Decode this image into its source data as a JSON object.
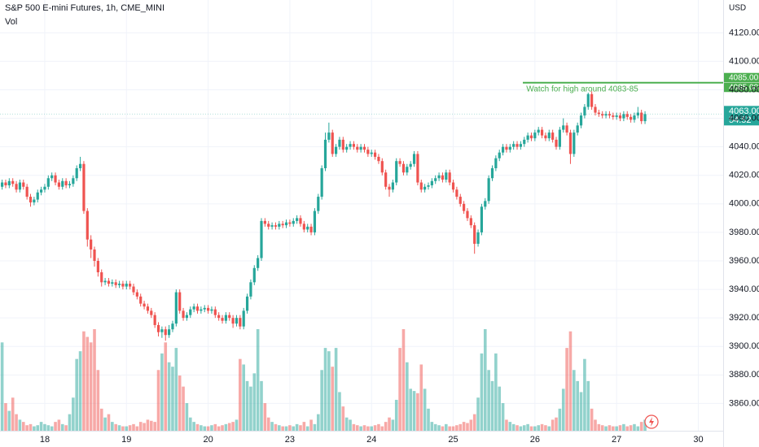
{
  "chart_data": {
    "type": "candlestick",
    "title": "S&P 500 E-mini Futures, 1h, CME_MINI",
    "volume_label": "Vol",
    "currency": "USD",
    "up_color": "#26a69a",
    "down_color": "#ef5350",
    "grid": true,
    "xlim": [
      -0.6,
      203
    ],
    "ylim": [
      3838,
      4143
    ],
    "xticks": [
      {
        "value": 12,
        "label": "18"
      },
      {
        "value": 35,
        "label": "19"
      },
      {
        "value": 58,
        "label": "20"
      },
      {
        "value": 81,
        "label": "23"
      },
      {
        "value": 104,
        "label": "24"
      },
      {
        "value": 127,
        "label": "25"
      },
      {
        "value": 150,
        "label": "26"
      },
      {
        "value": 173,
        "label": "27"
      },
      {
        "value": 196,
        "label": "30"
      }
    ],
    "yticks": [
      {
        "value": 3860,
        "label": "3860.00"
      },
      {
        "value": 3880,
        "label": "3880.00"
      },
      {
        "value": 3900,
        "label": "3900.00"
      },
      {
        "value": 3920,
        "label": "3920.00"
      },
      {
        "value": 3940,
        "label": "3940.00"
      },
      {
        "value": 3960,
        "label": "3960.00"
      },
      {
        "value": 3980,
        "label": "3980.00"
      },
      {
        "value": 4000,
        "label": "4000.00"
      },
      {
        "value": 4020,
        "label": "4020.00"
      },
      {
        "value": 4040,
        "label": "4040.00"
      },
      {
        "value": 4060,
        "label": "4060.00"
      },
      {
        "value": 4080,
        "label": "4080.00"
      },
      {
        "value": 4100,
        "label": "4100.00"
      },
      {
        "value": 4120,
        "label": "4120.00"
      }
    ],
    "annotation": {
      "text": "Watch for high around 4083-85",
      "price": 4085,
      "x_start": 146.6,
      "color": "#4caf50",
      "price_labels": [
        "4085.00",
        "4085.00"
      ]
    },
    "last_price": {
      "value": 4063,
      "label": "4063.00",
      "countdown": "54:52",
      "color": "#26a69a"
    },
    "x": [
      0,
      1,
      2,
      3,
      4,
      5,
      6,
      7,
      8,
      9,
      10,
      11,
      12,
      13,
      14,
      15,
      16,
      17,
      18,
      19,
      20,
      21,
      22,
      23,
      24,
      25,
      26,
      27,
      28,
      29,
      30,
      31,
      32,
      33,
      34,
      35,
      36,
      37,
      38,
      39,
      40,
      41,
      42,
      43,
      44,
      45,
      46,
      47,
      48,
      49,
      50,
      51,
      52,
      53,
      54,
      55,
      56,
      57,
      58,
      59,
      60,
      61,
      62,
      63,
      64,
      65,
      66,
      67,
      68,
      69,
      70,
      71,
      72,
      73,
      74,
      75,
      76,
      77,
      78,
      79,
      80,
      81,
      82,
      83,
      84,
      85,
      86,
      87,
      88,
      89,
      90,
      91,
      92,
      93,
      94,
      95,
      96,
      97,
      98,
      99,
      100,
      101,
      102,
      103,
      104,
      105,
      106,
      107,
      108,
      109,
      110,
      111,
      112,
      113,
      114,
      115,
      116,
      117,
      118,
      119,
      120,
      121,
      122,
      123,
      124,
      125,
      126,
      127,
      128,
      129,
      130,
      131,
      132,
      133,
      134,
      135,
      136,
      137,
      138,
      139,
      140,
      141,
      142,
      143,
      144,
      145,
      146,
      147,
      148,
      149,
      150,
      151,
      152,
      153,
      154,
      155,
      156,
      157,
      158,
      159,
      160,
      161,
      162,
      163,
      164,
      165,
      166,
      167,
      168,
      169,
      170,
      171,
      172,
      173,
      174,
      175,
      176,
      177,
      178,
      179,
      180,
      181
    ],
    "ohlc": [
      [
        4012,
        4017,
        4010,
        4015
      ],
      [
        4015,
        4017,
        4011,
        4013
      ],
      [
        4013,
        4018,
        4011,
        4016
      ],
      [
        4016,
        4018,
        4012,
        4014
      ],
      [
        4014,
        4016,
        4008,
        4010
      ],
      [
        4010,
        4017,
        4008,
        4015
      ],
      [
        4015,
        4017,
        4010,
        4012
      ],
      [
        4012,
        4014,
        4003,
        4005
      ],
      [
        4005,
        4007,
        3998,
        4001
      ],
      [
        4001,
        4005,
        3999,
        4003
      ],
      [
        4003,
        4010,
        4001,
        4008
      ],
      [
        4008,
        4012,
        4006,
        4010
      ],
      [
        4010,
        4014,
        4008,
        4012
      ],
      [
        4012,
        4020,
        4010,
        4018
      ],
      [
        4018,
        4022,
        4016,
        4020
      ],
      [
        4020,
        4022,
        4013,
        4015
      ],
      [
        4015,
        4017,
        4010,
        4012
      ],
      [
        4012,
        4018,
        4010,
        4016
      ],
      [
        4016,
        4018,
        4011,
        4013
      ],
      [
        4013,
        4016,
        4011,
        4014
      ],
      [
        4014,
        4020,
        4012,
        4018
      ],
      [
        4018,
        4027,
        4016,
        4025
      ],
      [
        4025,
        4033,
        4023,
        4028
      ],
      [
        4028,
        4030,
        3993,
        3995
      ],
      [
        3995,
        3997,
        3970,
        3975
      ],
      [
        3975,
        3978,
        3962,
        3968
      ],
      [
        3968,
        3970,
        3956,
        3960
      ],
      [
        3960,
        3962,
        3949,
        3952
      ],
      [
        3952,
        3954,
        3942,
        3945
      ],
      [
        3945,
        3948,
        3943,
        3946
      ],
      [
        3946,
        3948,
        3942,
        3944
      ],
      [
        3944,
        3947,
        3942,
        3945
      ],
      [
        3945,
        3947,
        3941,
        3943
      ],
      [
        3943,
        3946,
        3941,
        3944
      ],
      [
        3944,
        3946,
        3940,
        3942
      ],
      [
        3942,
        3946,
        3940,
        3944
      ],
      [
        3944,
        3946,
        3940,
        3942
      ],
      [
        3942,
        3944,
        3936,
        3938
      ],
      [
        3938,
        3940,
        3933,
        3935
      ],
      [
        3935,
        3937,
        3928,
        3930
      ],
      [
        3930,
        3932,
        3926,
        3928
      ],
      [
        3928,
        3930,
        3923,
        3925
      ],
      [
        3925,
        3927,
        3920,
        3922
      ],
      [
        3922,
        3924,
        3913,
        3915
      ],
      [
        3915,
        3917,
        3907,
        3910
      ],
      [
        3910,
        3914,
        3906,
        3912
      ],
      [
        3912,
        3914,
        3904,
        3908
      ],
      [
        3908,
        3915,
        3906,
        3912
      ],
      [
        3912,
        3918,
        3910,
        3916
      ],
      [
        3916,
        3940,
        3914,
        3938
      ],
      [
        3938,
        3940,
        3923,
        3925
      ],
      [
        3925,
        3927,
        3918,
        3920
      ],
      [
        3920,
        3924,
        3918,
        3922
      ],
      [
        3922,
        3928,
        3920,
        3926
      ],
      [
        3926,
        3930,
        3924,
        3928
      ],
      [
        3928,
        3930,
        3923,
        3925
      ],
      [
        3925,
        3928,
        3923,
        3926
      ],
      [
        3926,
        3929,
        3924,
        3927
      ],
      [
        3927,
        3929,
        3923,
        3925
      ],
      [
        3925,
        3928,
        3923,
        3926
      ],
      [
        3926,
        3928,
        3920,
        3922
      ],
      [
        3922,
        3924,
        3918,
        3920
      ],
      [
        3920,
        3922,
        3916,
        3918
      ],
      [
        3918,
        3924,
        3916,
        3922
      ],
      [
        3922,
        3924,
        3918,
        3920
      ],
      [
        3920,
        3922,
        3913,
        3916
      ],
      [
        3916,
        3922,
        3914,
        3920
      ],
      [
        3920,
        3922,
        3912,
        3914
      ],
      [
        3914,
        3927,
        3912,
        3925
      ],
      [
        3925,
        3937,
        3923,
        3935
      ],
      [
        3935,
        3947,
        3933,
        3945
      ],
      [
        3945,
        3957,
        3943,
        3955
      ],
      [
        3955,
        3964,
        3953,
        3962
      ],
      [
        3962,
        3990,
        3960,
        3988
      ],
      [
        3988,
        3990,
        3984,
        3986
      ],
      [
        3986,
        3988,
        3982,
        3984
      ],
      [
        3984,
        3987,
        3982,
        3985
      ],
      [
        3985,
        3987,
        3982,
        3984
      ],
      [
        3984,
        3988,
        3982,
        3986
      ],
      [
        3986,
        3988,
        3983,
        3985
      ],
      [
        3985,
        3989,
        3983,
        3987
      ],
      [
        3987,
        3989,
        3984,
        3986
      ],
      [
        3986,
        3990,
        3984,
        3988
      ],
      [
        3988,
        3992,
        3986,
        3990
      ],
      [
        3990,
        3992,
        3984,
        3986
      ],
      [
        3986,
        3988,
        3980,
        3982
      ],
      [
        3982,
        3986,
        3980,
        3984
      ],
      [
        3984,
        3986,
        3978,
        3980
      ],
      [
        3980,
        3997,
        3978,
        3995
      ],
      [
        3995,
        4007,
        3993,
        4005
      ],
      [
        4005,
        4027,
        4003,
        4025
      ],
      [
        4025,
        4050,
        4023,
        4045
      ],
      [
        4045,
        4057,
        4043,
        4050
      ],
      [
        4050,
        4052,
        4033,
        4035
      ],
      [
        4035,
        4042,
        4033,
        4040
      ],
      [
        4040,
        4047,
        4038,
        4045
      ],
      [
        4045,
        4047,
        4036,
        4038
      ],
      [
        4038,
        4042,
        4036,
        4040
      ],
      [
        4040,
        4044,
        4038,
        4042
      ],
      [
        4042,
        4044,
        4038,
        4040
      ],
      [
        4040,
        4042,
        4036,
        4038
      ],
      [
        4038,
        4042,
        4036,
        4040
      ],
      [
        4040,
        4042,
        4036,
        4038
      ],
      [
        4038,
        4040,
        4033,
        4035
      ],
      [
        4035,
        4038,
        4033,
        4036
      ],
      [
        4036,
        4038,
        4031,
        4033
      ],
      [
        4033,
        4035,
        4028,
        4030
      ],
      [
        4030,
        4032,
        4020,
        4022
      ],
      [
        4022,
        4024,
        4010,
        4012
      ],
      [
        4012,
        4014,
        4005,
        4010
      ],
      [
        4010,
        4017,
        4008,
        4015
      ],
      [
        4015,
        4032,
        4013,
        4030
      ],
      [
        4030,
        4032,
        4026,
        4028
      ],
      [
        4028,
        4030,
        4020,
        4022
      ],
      [
        4022,
        4028,
        4020,
        4026
      ],
      [
        4026,
        4030,
        4024,
        4028
      ],
      [
        4028,
        4037,
        4026,
        4035
      ],
      [
        4035,
        4037,
        4013,
        4015
      ],
      [
        4015,
        4017,
        4008,
        4010
      ],
      [
        4010,
        4014,
        4008,
        4012
      ],
      [
        4012,
        4015,
        4010,
        4013
      ],
      [
        4013,
        4018,
        4011,
        4016
      ],
      [
        4016,
        4020,
        4014,
        4018
      ],
      [
        4018,
        4022,
        4016,
        4020
      ],
      [
        4020,
        4022,
        4015,
        4017
      ],
      [
        4017,
        4024,
        4015,
        4022
      ],
      [
        4022,
        4024,
        4013,
        4015
      ],
      [
        4015,
        4017,
        4008,
        4010
      ],
      [
        4010,
        4012,
        4003,
        4005
      ],
      [
        4005,
        4007,
        3998,
        4000
      ],
      [
        4000,
        4002,
        3993,
        3995
      ],
      [
        3995,
        3997,
        3988,
        3990
      ],
      [
        3990,
        3992,
        3983,
        3985
      ],
      [
        3985,
        3987,
        3965,
        3972
      ],
      [
        3972,
        3982,
        3970,
        3980
      ],
      [
        3980,
        4000,
        3978,
        3998
      ],
      [
        3998,
        4004,
        3996,
        4002
      ],
      [
        4002,
        4020,
        4000,
        4018
      ],
      [
        4018,
        4027,
        4016,
        4025
      ],
      [
        4025,
        4034,
        4023,
        4032
      ],
      [
        4032,
        4038,
        4030,
        4036
      ],
      [
        4036,
        4042,
        4034,
        4040
      ],
      [
        4040,
        4042,
        4036,
        4038
      ],
      [
        4038,
        4042,
        4036,
        4040
      ],
      [
        4040,
        4044,
        4038,
        4042
      ],
      [
        4042,
        4044,
        4038,
        4040
      ],
      [
        4040,
        4044,
        4038,
        4042
      ],
      [
        4042,
        4047,
        4040,
        4045
      ],
      [
        4045,
        4050,
        4043,
        4048
      ],
      [
        4048,
        4050,
        4044,
        4046
      ],
      [
        4046,
        4052,
        4044,
        4050
      ],
      [
        4050,
        4054,
        4048,
        4052
      ],
      [
        4052,
        4054,
        4046,
        4048
      ],
      [
        4048,
        4050,
        4044,
        4046
      ],
      [
        4046,
        4052,
        4044,
        4050
      ],
      [
        4050,
        4052,
        4043,
        4045
      ],
      [
        4045,
        4047,
        4038,
        4040
      ],
      [
        4040,
        4054,
        4038,
        4052
      ],
      [
        4052,
        4060,
        4050,
        4055
      ],
      [
        4055,
        4057,
        4048,
        4050
      ],
      [
        4050,
        4052,
        4028,
        4035
      ],
      [
        4035,
        4052,
        4033,
        4050
      ],
      [
        4050,
        4057,
        4048,
        4055
      ],
      [
        4055,
        4064,
        4053,
        4062
      ],
      [
        4062,
        4070,
        4060,
        4068
      ],
      [
        4068,
        4078,
        4066,
        4077
      ],
      [
        4077,
        4079,
        4066,
        4068
      ],
      [
        4068,
        4070,
        4062,
        4064
      ],
      [
        4064,
        4066,
        4061,
        4063
      ],
      [
        4063,
        4065,
        4060,
        4062
      ],
      [
        4062,
        4065,
        4060,
        4063
      ],
      [
        4063,
        4065,
        4060,
        4062
      ],
      [
        4062,
        4064,
        4059,
        4061
      ],
      [
        4061,
        4064,
        4059,
        4062
      ],
      [
        4062,
        4064,
        4058,
        4060
      ],
      [
        4060,
        4065,
        4058,
        4063
      ],
      [
        4063,
        4065,
        4059,
        4061
      ],
      [
        4061,
        4063,
        4057,
        4059
      ],
      [
        4059,
        4064,
        4057,
        4062
      ],
      [
        4062,
        4068,
        4060,
        4064
      ],
      [
        4064,
        4066,
        4056,
        4058
      ],
      [
        4058,
        4065,
        4056,
        4063
      ]
    ],
    "volume": [
      80,
      25,
      18,
      30,
      15,
      10,
      8,
      5,
      6,
      4,
      5,
      8,
      6,
      5,
      4,
      8,
      10,
      6,
      5,
      15,
      30,
      65,
      72,
      90,
      85,
      80,
      92,
      55,
      20,
      12,
      15,
      8,
      6,
      5,
      4,
      4,
      5,
      6,
      4,
      8,
      7,
      10,
      9,
      8,
      55,
      70,
      80,
      62,
      58,
      75,
      50,
      40,
      25,
      12,
      8,
      6,
      5,
      4,
      4,
      5,
      6,
      4,
      5,
      6,
      7,
      8,
      10,
      65,
      60,
      45,
      40,
      52,
      92,
      45,
      25,
      12,
      8,
      6,
      5,
      4,
      4,
      5,
      4,
      6,
      5,
      8,
      4,
      10,
      6,
      15,
      55,
      75,
      72,
      58,
      75,
      35,
      22,
      12,
      10,
      6,
      5,
      4,
      5,
      4,
      4,
      5,
      6,
      4,
      8,
      12,
      10,
      28,
      75,
      92,
      62,
      38,
      36,
      34,
      60,
      38,
      20,
      8,
      6,
      5,
      4,
      6,
      4,
      4,
      5,
      6,
      8,
      7,
      10,
      15,
      30,
      70,
      92,
      55,
      45,
      70,
      40,
      25,
      10,
      8,
      6,
      5,
      4,
      5,
      6,
      4,
      4,
      5,
      6,
      5,
      4,
      10,
      12,
      20,
      38,
      75,
      90,
      55,
      45,
      35,
      65,
      45,
      20,
      10,
      6,
      5,
      4,
      5,
      4,
      4,
      5,
      6,
      4,
      5,
      6,
      4,
      8,
      10
    ]
  }
}
